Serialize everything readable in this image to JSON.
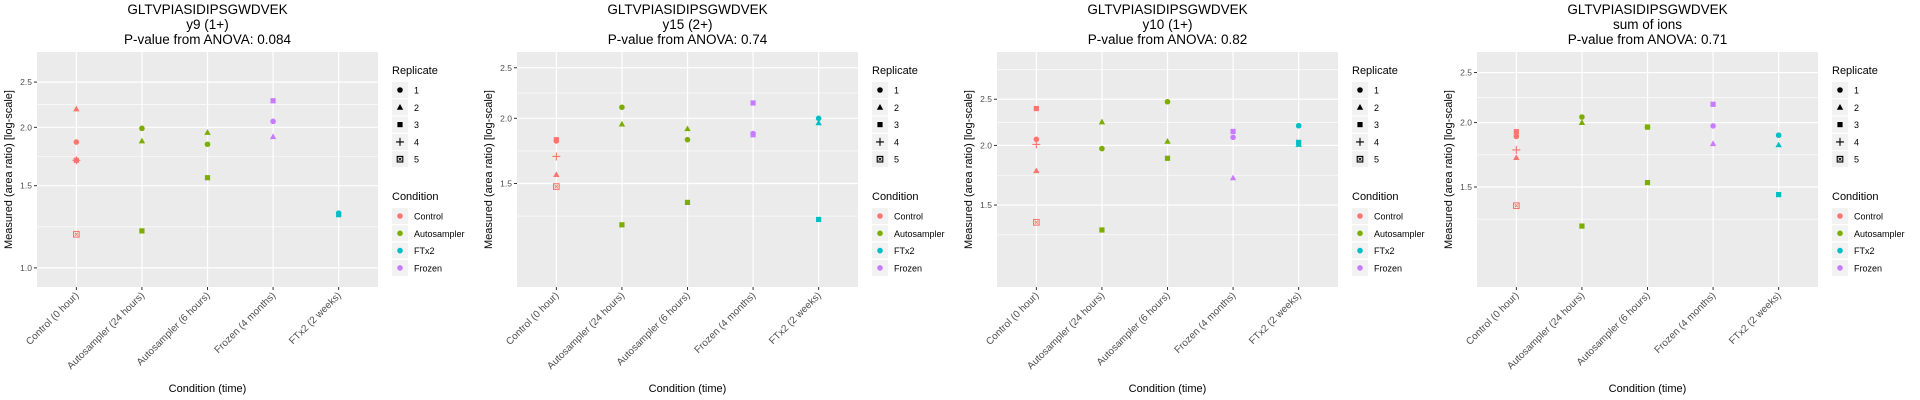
{
  "legend": {
    "shape_title": "Replicate",
    "shapes": [
      {
        "label": "1",
        "shape": "circle"
      },
      {
        "label": "2",
        "shape": "triangle"
      },
      {
        "label": "3",
        "shape": "square"
      },
      {
        "label": "4",
        "shape": "plus"
      },
      {
        "label": "5",
        "shape": "square-cross"
      }
    ],
    "color_title": "Condition",
    "colors": [
      {
        "label": "Control",
        "color": "#F8766D"
      },
      {
        "label": "Autosampler",
        "color": "#7CAE00"
      },
      {
        "label": "FTx2",
        "color": "#00BFC4"
      },
      {
        "label": "Frozen",
        "color": "#C77CFF"
      }
    ]
  },
  "chart_data": [
    {
      "type": "scatter",
      "title": "GLTVPIASIDIPSGWDVEK",
      "subtitle": "y9 (1+)",
      "pvalue_text": "P-value from ANOVA: 0.084",
      "xlabel": "Condition (time)",
      "ylabel": "Measured (area ratio) [log-scale]",
      "yscale": "log10",
      "ylim": [
        0.91,
        2.9
      ],
      "yticks": [
        1.0,
        1.5,
        2.0,
        2.5
      ],
      "ytick_labels": [
        "1.0",
        "1.5",
        "2.0",
        "2.5"
      ],
      "categories": [
        "Control (0 hour)",
        "Autosampler (24 hours)",
        "Autosampler (6 hours)",
        "Frozen (4 months)",
        "FTx2 (2 weeks)"
      ],
      "grid": true,
      "legend_position": "right",
      "points": [
        {
          "x": "Control (0 hour)",
          "y": 2.19,
          "replicate": "2",
          "condition": "Control"
        },
        {
          "x": "Control (0 hour)",
          "y": 1.86,
          "replicate": "1",
          "condition": "Control"
        },
        {
          "x": "Control (0 hour)",
          "y": 1.7,
          "replicate": "4",
          "condition": "Control"
        },
        {
          "x": "Control (0 hour)",
          "y": 1.7,
          "replicate": "3",
          "condition": "Control"
        },
        {
          "x": "Control (0 hour)",
          "y": 1.18,
          "replicate": "5",
          "condition": "Control"
        },
        {
          "x": "Autosampler (24 hours)",
          "y": 1.99,
          "replicate": "1",
          "condition": "Autosampler"
        },
        {
          "x": "Autosampler (24 hours)",
          "y": 1.87,
          "replicate": "2",
          "condition": "Autosampler"
        },
        {
          "x": "Autosampler (24 hours)",
          "y": 1.2,
          "replicate": "3",
          "condition": "Autosampler"
        },
        {
          "x": "Autosampler (6 hours)",
          "y": 1.95,
          "replicate": "2",
          "condition": "Autosampler"
        },
        {
          "x": "Autosampler (6 hours)",
          "y": 1.84,
          "replicate": "1",
          "condition": "Autosampler"
        },
        {
          "x": "Autosampler (6 hours)",
          "y": 1.56,
          "replicate": "3",
          "condition": "Autosampler"
        },
        {
          "x": "Frozen (4 months)",
          "y": 2.28,
          "replicate": "3",
          "condition": "Frozen"
        },
        {
          "x": "Frozen (4 months)",
          "y": 2.06,
          "replicate": "1",
          "condition": "Frozen"
        },
        {
          "x": "Frozen (4 months)",
          "y": 1.91,
          "replicate": "2",
          "condition": "Frozen"
        },
        {
          "x": "FTx2 (2 weeks)",
          "y": 1.31,
          "replicate": "1",
          "condition": "FTx2"
        },
        {
          "x": "FTx2 (2 weeks)",
          "y": 1.3,
          "replicate": "3",
          "condition": "FTx2"
        }
      ]
    },
    {
      "type": "scatter",
      "title": "GLTVPIASIDIPSGWDVEK",
      "subtitle": "y15 (2+)",
      "pvalue_text": "P-value from ANOVA: 0.74",
      "xlabel": "Condition (time)",
      "ylabel": "Measured (area ratio) [log-scale]",
      "yscale": "log10",
      "ylim": [
        0.95,
        2.68
      ],
      "yticks": [
        1.5,
        2.0,
        2.5
      ],
      "ytick_labels": [
        "1.5",
        "2.0",
        "2.5"
      ],
      "categories": [
        "Control (0 hour)",
        "Autosampler (24 hours)",
        "Autosampler (6 hours)",
        "Frozen (4 months)",
        "FTx2 (2 weeks)"
      ],
      "grid": true,
      "legend_position": "right",
      "points": [
        {
          "x": "Control (0 hour)",
          "y": 1.82,
          "replicate": "3",
          "condition": "Control"
        },
        {
          "x": "Control (0 hour)",
          "y": 1.81,
          "replicate": "1",
          "condition": "Control"
        },
        {
          "x": "Control (0 hour)",
          "y": 1.69,
          "replicate": "4",
          "condition": "Control"
        },
        {
          "x": "Control (0 hour)",
          "y": 1.56,
          "replicate": "2",
          "condition": "Control"
        },
        {
          "x": "Control (0 hour)",
          "y": 1.48,
          "replicate": "5",
          "condition": "Control"
        },
        {
          "x": "Autosampler (24 hours)",
          "y": 2.1,
          "replicate": "1",
          "condition": "Autosampler"
        },
        {
          "x": "Autosampler (24 hours)",
          "y": 1.95,
          "replicate": "2",
          "condition": "Autosampler"
        },
        {
          "x": "Autosampler (24 hours)",
          "y": 1.25,
          "replicate": "3",
          "condition": "Autosampler"
        },
        {
          "x": "Autosampler (6 hours)",
          "y": 1.91,
          "replicate": "2",
          "condition": "Autosampler"
        },
        {
          "x": "Autosampler (6 hours)",
          "y": 1.82,
          "replicate": "1",
          "condition": "Autosampler"
        },
        {
          "x": "Autosampler (6 hours)",
          "y": 1.38,
          "replicate": "3",
          "condition": "Autosampler"
        },
        {
          "x": "Frozen (4 months)",
          "y": 2.14,
          "replicate": "3",
          "condition": "Frozen"
        },
        {
          "x": "Frozen (4 months)",
          "y": 1.87,
          "replicate": "1",
          "condition": "Frozen"
        },
        {
          "x": "Frozen (4 months)",
          "y": 1.86,
          "replicate": "3",
          "condition": "Frozen"
        },
        {
          "x": "FTx2 (2 weeks)",
          "y": 2.0,
          "replicate": "1",
          "condition": "FTx2"
        },
        {
          "x": "FTx2 (2 weeks)",
          "y": 1.96,
          "replicate": "2",
          "condition": "FTx2"
        },
        {
          "x": "FTx2 (2 weeks)",
          "y": 1.28,
          "replicate": "3",
          "condition": "FTx2"
        }
      ]
    },
    {
      "type": "scatter",
      "title": "GLTVPIASIDIPSGWDVEK",
      "subtitle": "y10 (1+)",
      "pvalue_text": "P-value from ANOVA: 0.82",
      "xlabel": "Condition (time)",
      "ylabel": "Measured (area ratio) [log-scale]",
      "yscale": "log10",
      "ylim": [
        1.01,
        3.14
      ],
      "yticks": [
        1.5,
        2.0,
        2.5
      ],
      "ytick_labels": [
        "1.5",
        "2.0",
        "2.5"
      ],
      "categories": [
        "Control (0 hour)",
        "Autosampler (24 hours)",
        "Autosampler (6 hours)",
        "Frozen (4 months)",
        "FTx2 (2 weeks)"
      ],
      "grid": true,
      "legend_position": "right",
      "points": [
        {
          "x": "Control (0 hour)",
          "y": 2.39,
          "replicate": "3",
          "condition": "Control"
        },
        {
          "x": "Control (0 hour)",
          "y": 2.06,
          "replicate": "1",
          "condition": "Control"
        },
        {
          "x": "Control (0 hour)",
          "y": 2.01,
          "replicate": "4",
          "condition": "Control"
        },
        {
          "x": "Control (0 hour)",
          "y": 1.77,
          "replicate": "2",
          "condition": "Control"
        },
        {
          "x": "Control (0 hour)",
          "y": 1.38,
          "replicate": "5",
          "condition": "Control"
        },
        {
          "x": "Autosampler (24 hours)",
          "y": 2.24,
          "replicate": "2",
          "condition": "Autosampler"
        },
        {
          "x": "Autosampler (24 hours)",
          "y": 1.97,
          "replicate": "1",
          "condition": "Autosampler"
        },
        {
          "x": "Autosampler (24 hours)",
          "y": 1.33,
          "replicate": "3",
          "condition": "Autosampler"
        },
        {
          "x": "Autosampler (6 hours)",
          "y": 2.47,
          "replicate": "1",
          "condition": "Autosampler"
        },
        {
          "x": "Autosampler (6 hours)",
          "y": 2.04,
          "replicate": "2",
          "condition": "Autosampler"
        },
        {
          "x": "Autosampler (6 hours)",
          "y": 1.88,
          "replicate": "3",
          "condition": "Autosampler"
        },
        {
          "x": "Frozen (4 months)",
          "y": 2.14,
          "replicate": "3",
          "condition": "Frozen"
        },
        {
          "x": "Frozen (4 months)",
          "y": 2.08,
          "replicate": "1",
          "condition": "Frozen"
        },
        {
          "x": "Frozen (4 months)",
          "y": 1.71,
          "replicate": "2",
          "condition": "Frozen"
        },
        {
          "x": "FTx2 (2 weeks)",
          "y": 2.2,
          "replicate": "1",
          "condition": "FTx2"
        },
        {
          "x": "FTx2 (2 weeks)",
          "y": 2.03,
          "replicate": "3",
          "condition": "FTx2"
        },
        {
          "x": "FTx2 (2 weeks)",
          "y": 2.01,
          "replicate": "2",
          "condition": "FTx2"
        }
      ]
    },
    {
      "type": "scatter",
      "title": "GLTVPIASIDIPSGWDVEK",
      "subtitle": "sum of ions",
      "pvalue_text": "P-value from ANOVA: 0.71",
      "xlabel": "Condition (time)",
      "ylabel": "Measured (area ratio) [log-scale]",
      "yscale": "log10",
      "ylim": [
        0.96,
        2.74
      ],
      "yticks": [
        1.5,
        2.0,
        2.5
      ],
      "ytick_labels": [
        "1.5",
        "2.0",
        "2.5"
      ],
      "categories": [
        "Control (0 hour)",
        "Autosampler (24 hours)",
        "Autosampler (6 hours)",
        "Frozen (4 months)",
        "FTx2 (2 weeks)"
      ],
      "grid": true,
      "legend_position": "right",
      "points": [
        {
          "x": "Control (0 hour)",
          "y": 1.92,
          "replicate": "3",
          "condition": "Control"
        },
        {
          "x": "Control (0 hour)",
          "y": 1.88,
          "replicate": "1",
          "condition": "Control"
        },
        {
          "x": "Control (0 hour)",
          "y": 1.77,
          "replicate": "4",
          "condition": "Control"
        },
        {
          "x": "Control (0 hour)",
          "y": 1.71,
          "replicate": "2",
          "condition": "Control"
        },
        {
          "x": "Control (0 hour)",
          "y": 1.38,
          "replicate": "5",
          "condition": "Control"
        },
        {
          "x": "Autosampler (24 hours)",
          "y": 2.05,
          "replicate": "1",
          "condition": "Autosampler"
        },
        {
          "x": "Autosampler (24 hours)",
          "y": 2.0,
          "replicate": "2",
          "condition": "Autosampler"
        },
        {
          "x": "Autosampler (24 hours)",
          "y": 1.26,
          "replicate": "3",
          "condition": "Autosampler"
        },
        {
          "x": "Autosampler (6 hours)",
          "y": 1.96,
          "replicate": "1",
          "condition": "Autosampler"
        },
        {
          "x": "Autosampler (6 hours)",
          "y": 1.96,
          "replicate": "3",
          "condition": "Autosampler"
        },
        {
          "x": "Autosampler (6 hours)",
          "y": 1.53,
          "replicate": "3",
          "condition": "Autosampler"
        },
        {
          "x": "Frozen (4 months)",
          "y": 2.17,
          "replicate": "3",
          "condition": "Frozen"
        },
        {
          "x": "Frozen (4 months)",
          "y": 1.97,
          "replicate": "1",
          "condition": "Frozen"
        },
        {
          "x": "Frozen (4 months)",
          "y": 1.82,
          "replicate": "2",
          "condition": "Frozen"
        },
        {
          "x": "FTx2 (2 weeks)",
          "y": 1.89,
          "replicate": "1",
          "condition": "FTx2"
        },
        {
          "x": "FTx2 (2 weeks)",
          "y": 1.81,
          "replicate": "2",
          "condition": "FTx2"
        },
        {
          "x": "FTx2 (2 weeks)",
          "y": 1.45,
          "replicate": "3",
          "condition": "FTx2"
        }
      ]
    }
  ]
}
